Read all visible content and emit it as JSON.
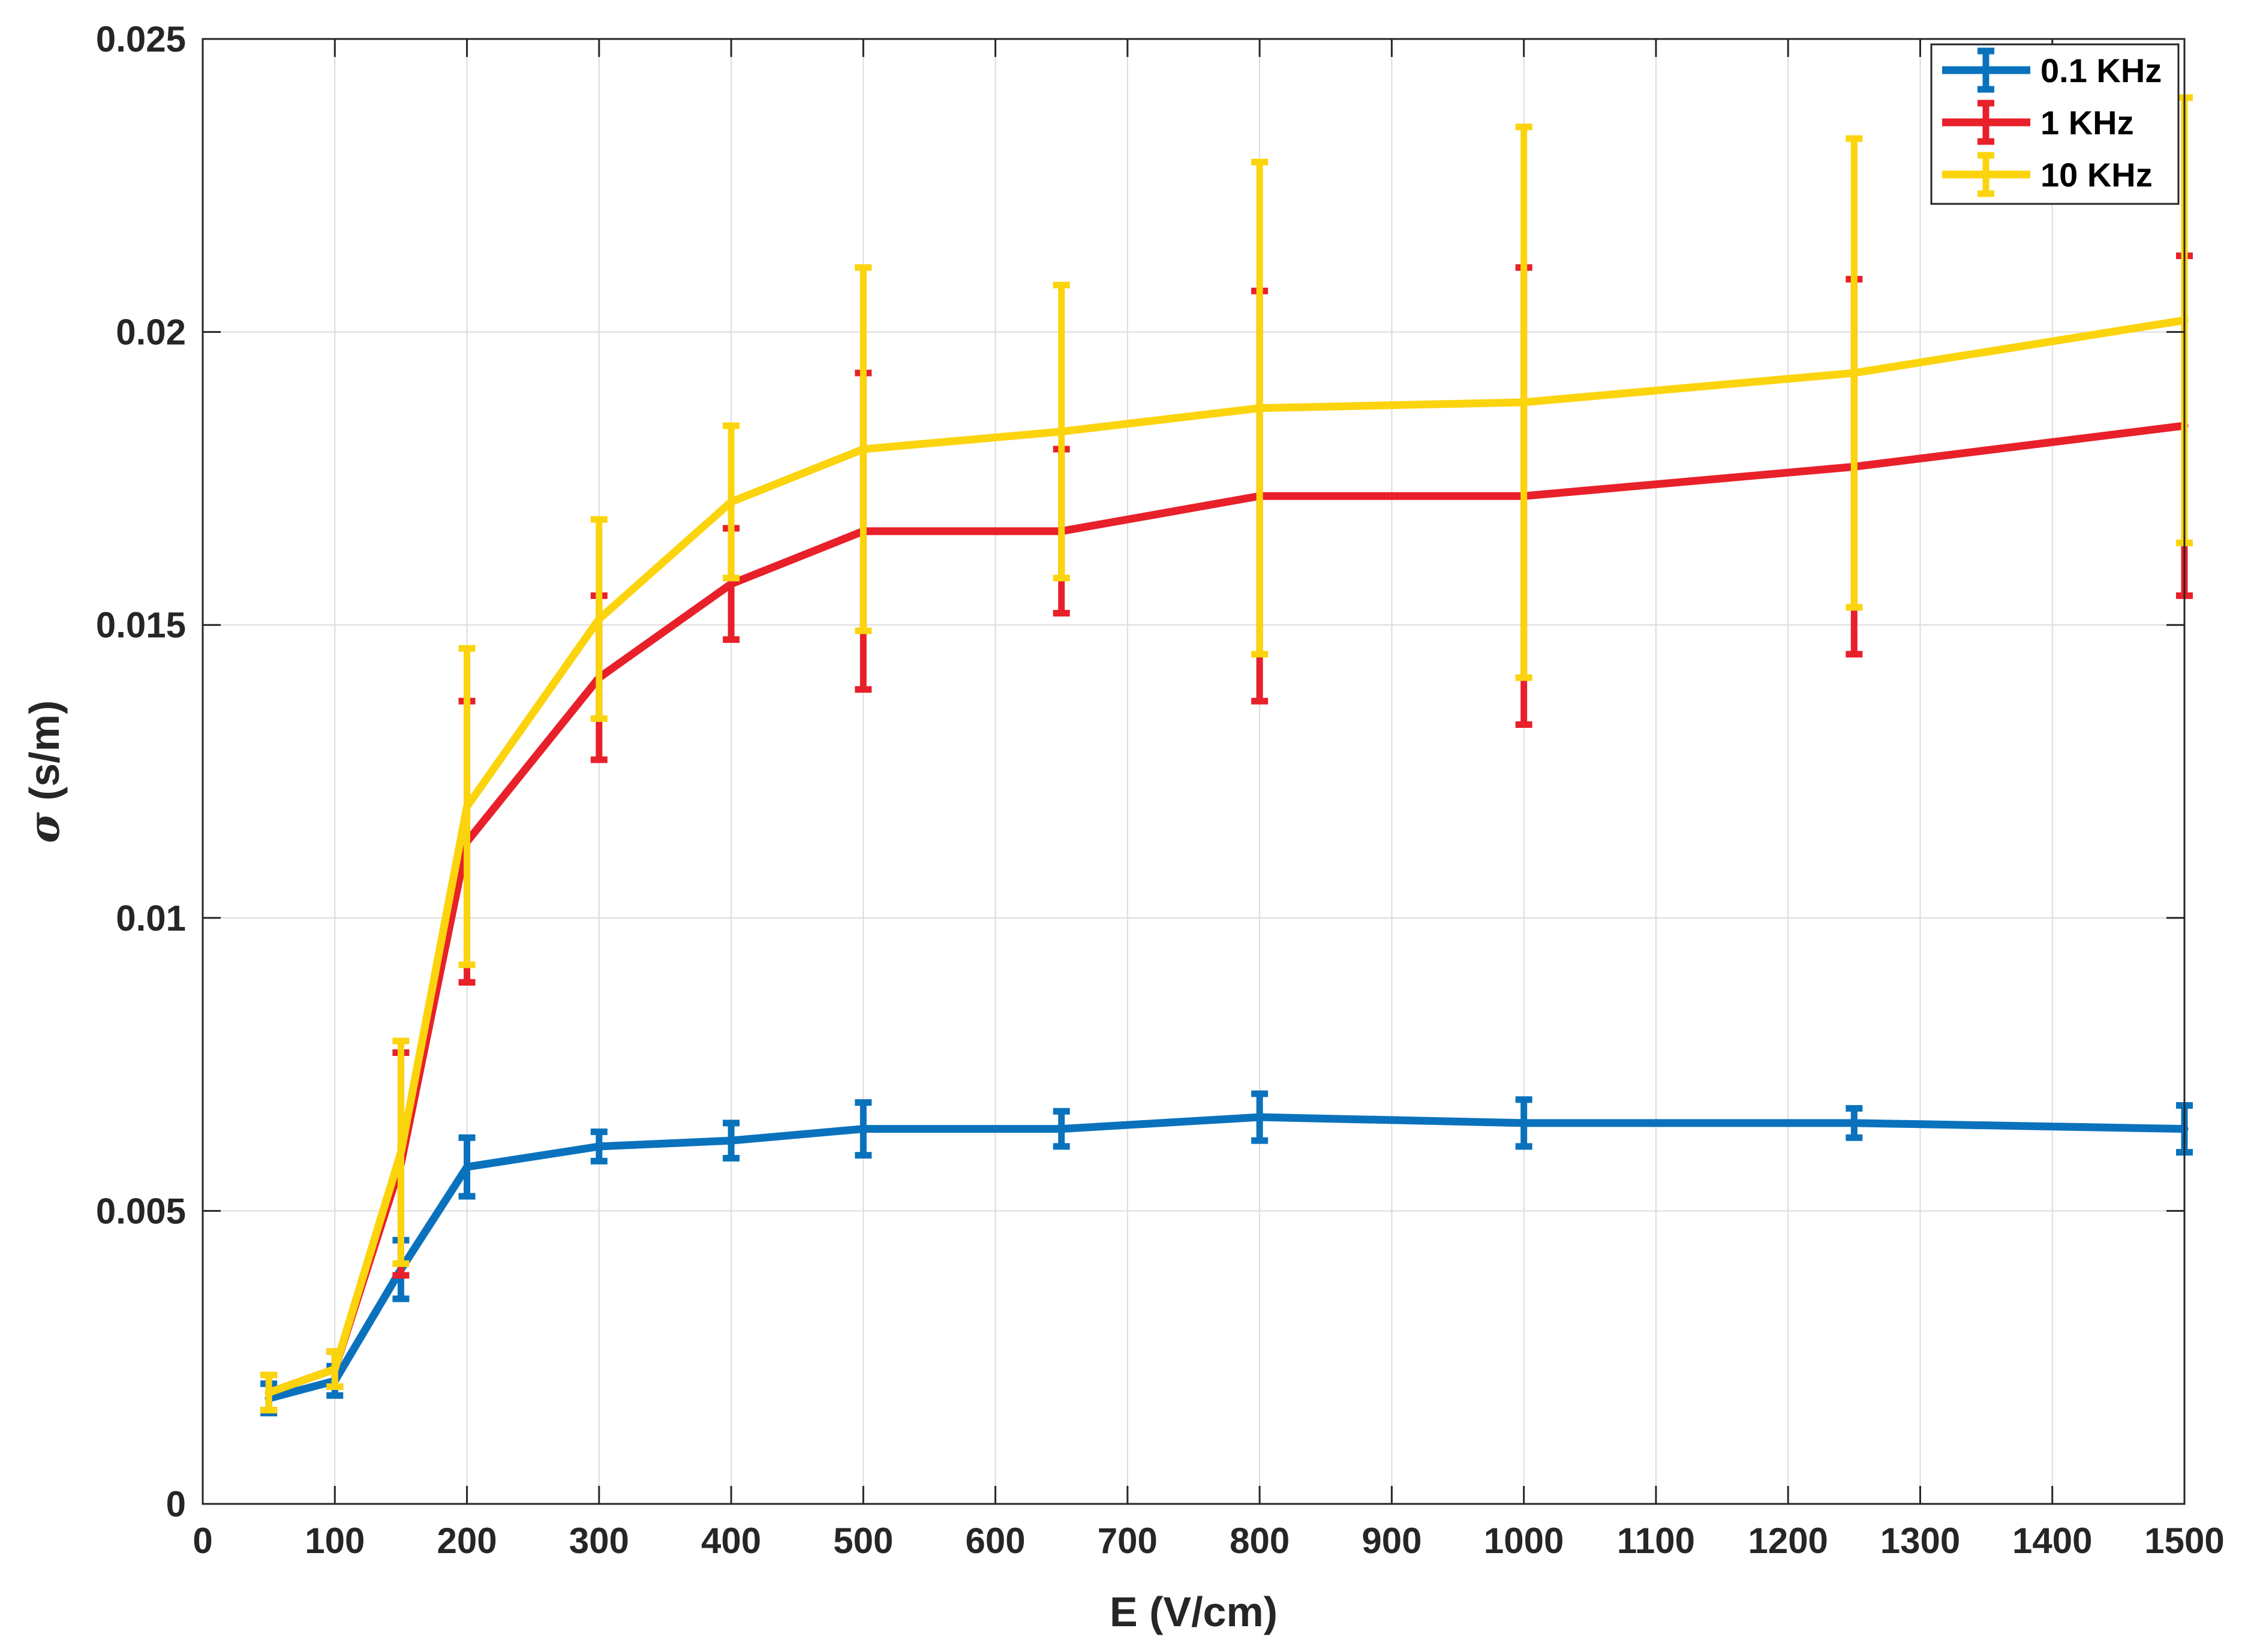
{
  "chart_data": {
    "type": "line",
    "xlabel": "E (V/cm)",
    "ylabel_symbol": "σ",
    "ylabel_unit": " (s/m)",
    "xlim": [
      0,
      1500
    ],
    "ylim": [
      0,
      0.025
    ],
    "xticks": [
      0,
      100,
      200,
      300,
      400,
      500,
      600,
      700,
      800,
      900,
      1000,
      1100,
      1200,
      1300,
      1400,
      1500
    ],
    "xtick_labels": [
      "0",
      "100",
      "200",
      "300",
      "400",
      "500",
      "600",
      "700",
      "800",
      "900",
      "1000",
      "1100",
      "1200",
      "1300",
      "1400",
      "1500"
    ],
    "yticks": [
      0,
      0.005,
      0.01,
      0.015,
      0.02,
      0.025
    ],
    "ytick_labels": [
      "0",
      "0.005",
      "0.01",
      "0.015",
      "0.02",
      "0.025"
    ],
    "grid": true,
    "legend_position": "top-right",
    "x": [
      50,
      100,
      150,
      200,
      300,
      400,
      500,
      650,
      800,
      1000,
      1250,
      1500
    ],
    "series": [
      {
        "name": "0.1 KHz",
        "color": "#0a72bd",
        "values": [
          0.0018,
          0.0021,
          0.004,
          0.00575,
          0.0061,
          0.0062,
          0.0064,
          0.0064,
          0.0066,
          0.0065,
          0.0065,
          0.0064
        ],
        "errors": [
          0.00025,
          0.00025,
          0.0005,
          0.0005,
          0.00025,
          0.0003,
          0.00045,
          0.0003,
          0.0004,
          0.0004,
          0.00025,
          0.0004
        ]
      },
      {
        "name": "1 KHz",
        "color": "#e8202a",
        "values": [
          0.0019,
          0.0023,
          0.0058,
          0.0113,
          0.0141,
          0.0157,
          0.0166,
          0.0166,
          0.0172,
          0.0172,
          0.0177,
          0.0184
        ],
        "errors": [
          0.0003,
          0.0003,
          0.0019,
          0.0024,
          0.0014,
          0.00095,
          0.0027,
          0.0014,
          0.0035,
          0.0039,
          0.0032,
          0.0029
        ]
      },
      {
        "name": "10 KHz",
        "color": "#fbd40d",
        "values": [
          0.0019,
          0.0023,
          0.006,
          0.0119,
          0.0151,
          0.0171,
          0.018,
          0.0183,
          0.0187,
          0.0188,
          0.0193,
          0.0202
        ],
        "errors": [
          0.0003,
          0.0003,
          0.0019,
          0.0027,
          0.0017,
          0.0013,
          0.0031,
          0.0025,
          0.0042,
          0.0047,
          0.004,
          0.0038
        ]
      }
    ]
  }
}
